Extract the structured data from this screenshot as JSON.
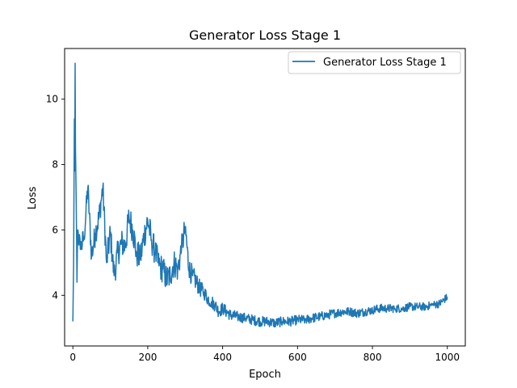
{
  "chart_data": {
    "type": "line",
    "title": "Generator Loss Stage 1",
    "xlabel": "Epoch",
    "ylabel": "Loss",
    "xlim": [
      -22,
      1048
    ],
    "ylim": [
      2.45,
      11.55
    ],
    "xticks": [
      0,
      200,
      400,
      600,
      800,
      1000
    ],
    "yticks": [
      4,
      6,
      8,
      10
    ],
    "legend_position": "top-right",
    "grid": false,
    "series": [
      {
        "name": "Generator Loss Stage 1",
        "color": "#1f77b4",
        "anchors": [
          [
            0,
            3.2
          ],
          [
            2,
            5.0
          ],
          [
            4,
            9.4
          ],
          [
            5,
            7.8
          ],
          [
            6,
            11.1
          ],
          [
            7,
            8.5
          ],
          [
            9,
            6.8
          ],
          [
            11,
            4.4
          ],
          [
            13,
            6.0
          ],
          [
            20,
            5.4
          ],
          [
            30,
            5.8
          ],
          [
            40,
            7.3
          ],
          [
            50,
            5.2
          ],
          [
            60,
            5.9
          ],
          [
            70,
            6.4
          ],
          [
            80,
            7.3
          ],
          [
            90,
            5.0
          ],
          [
            100,
            5.9
          ],
          [
            110,
            4.6
          ],
          [
            120,
            5.3
          ],
          [
            130,
            5.6
          ],
          [
            140,
            5.5
          ],
          [
            150,
            6.4
          ],
          [
            160,
            6.0
          ],
          [
            170,
            5.3
          ],
          [
            180,
            5.1
          ],
          [
            190,
            5.8
          ],
          [
            200,
            6.3
          ],
          [
            210,
            5.7
          ],
          [
            220,
            5.3
          ],
          [
            230,
            4.9
          ],
          [
            240,
            4.8
          ],
          [
            250,
            4.5
          ],
          [
            260,
            4.6
          ],
          [
            270,
            5.0
          ],
          [
            280,
            4.8
          ],
          [
            290,
            5.4
          ],
          [
            300,
            6.1
          ],
          [
            310,
            4.8
          ],
          [
            320,
            4.6
          ],
          [
            330,
            4.4
          ],
          [
            340,
            4.2
          ],
          [
            350,
            4.1
          ],
          [
            360,
            3.9
          ],
          [
            370,
            3.8
          ],
          [
            380,
            3.7
          ],
          [
            390,
            3.5
          ],
          [
            400,
            3.6
          ],
          [
            420,
            3.4
          ],
          [
            440,
            3.35
          ],
          [
            460,
            3.3
          ],
          [
            480,
            3.25
          ],
          [
            500,
            3.2
          ],
          [
            520,
            3.2
          ],
          [
            540,
            3.15
          ],
          [
            560,
            3.2
          ],
          [
            580,
            3.2
          ],
          [
            600,
            3.25
          ],
          [
            620,
            3.25
          ],
          [
            640,
            3.3
          ],
          [
            660,
            3.35
          ],
          [
            680,
            3.4
          ],
          [
            700,
            3.45
          ],
          [
            720,
            3.5
          ],
          [
            740,
            3.5
          ],
          [
            760,
            3.45
          ],
          [
            780,
            3.5
          ],
          [
            800,
            3.55
          ],
          [
            820,
            3.6
          ],
          [
            840,
            3.6
          ],
          [
            860,
            3.6
          ],
          [
            880,
            3.6
          ],
          [
            900,
            3.65
          ],
          [
            920,
            3.65
          ],
          [
            940,
            3.65
          ],
          [
            960,
            3.7
          ],
          [
            980,
            3.75
          ],
          [
            990,
            3.85
          ],
          [
            1000,
            3.95
          ]
        ],
        "noise_amplitude": [
          [
            0,
            0.0
          ],
          [
            14,
            0.35
          ],
          [
            150,
            0.45
          ],
          [
            290,
            0.42
          ],
          [
            350,
            0.22
          ],
          [
            450,
            0.16
          ],
          [
            1000,
            0.12
          ]
        ]
      }
    ]
  }
}
